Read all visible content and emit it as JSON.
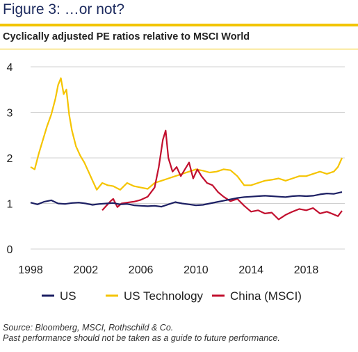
{
  "title": "Figure 3: …or not?",
  "subtitle": "Cyclically adjusted PE ratios relative to MSCI World",
  "source_lines": [
    "Source: Bloomberg, MSCI, Rothschild & Co.",
    "Past performance should not be taken as a guide to future performance."
  ],
  "colors": {
    "accent": "#f2c500",
    "US": "#1c1f63",
    "US Technology": "#f5c400",
    "China (MSCI)": "#c2102f",
    "grid": "#d0d0d0"
  },
  "chart_data": {
    "type": "line",
    "title": "",
    "xlabel": "",
    "ylabel": "",
    "xlim": [
      1998,
      2020.8
    ],
    "ylim": [
      0,
      4
    ],
    "x_ticks": [
      "1998",
      "2002",
      "2006",
      "2010",
      "2014",
      "2018"
    ],
    "y_ticks": [
      "0",
      "1",
      "2",
      "3",
      "4"
    ],
    "grid": "horizontal",
    "legend_position": "bottom",
    "series": [
      {
        "name": "US",
        "x": [
          1998,
          1998.5,
          1999,
          1999.5,
          2000,
          2000.5,
          2001,
          2001.5,
          2002,
          2002.5,
          2003,
          2003.5,
          2004,
          2004.5,
          2005,
          2005.5,
          2006,
          2006.5,
          2007,
          2007.5,
          2008,
          2008.5,
          2009,
          2009.5,
          2010,
          2010.5,
          2011,
          2011.5,
          2012,
          2012.5,
          2013,
          2013.5,
          2014,
          2014.5,
          2015,
          2015.5,
          2016,
          2016.5,
          2017,
          2017.5,
          2018,
          2018.5,
          2019,
          2019.5,
          2020,
          2020.6
        ],
        "y": [
          1.02,
          0.98,
          1.04,
          1.07,
          1.0,
          0.99,
          1.01,
          1.02,
          1.0,
          0.97,
          0.99,
          1.0,
          1.01,
          0.98,
          0.99,
          0.96,
          0.95,
          0.94,
          0.95,
          0.93,
          0.98,
          1.03,
          1.0,
          0.98,
          0.96,
          0.97,
          1.0,
          1.03,
          1.06,
          1.09,
          1.12,
          1.14,
          1.15,
          1.16,
          1.17,
          1.16,
          1.15,
          1.14,
          1.16,
          1.17,
          1.16,
          1.17,
          1.2,
          1.22,
          1.21,
          1.25
        ]
      },
      {
        "name": "US Technology",
        "x": [
          1998,
          1998.3,
          1998.6,
          1998.9,
          1999.2,
          1999.5,
          1999.8,
          2000.0,
          2000.2,
          2000.4,
          2000.6,
          2000.8,
          2001.0,
          2001.3,
          2001.6,
          2001.9,
          2002.2,
          2002.5,
          2002.8,
          2003.2,
          2003.6,
          2004,
          2004.5,
          2005,
          2005.5,
          2006,
          2006.5,
          2007,
          2007.5,
          2008,
          2008.5,
          2009,
          2009.5,
          2010,
          2010.5,
          2011,
          2011.5,
          2012,
          2012.5,
          2013,
          2013.5,
          2014,
          2014.5,
          2015,
          2015.5,
          2016,
          2016.5,
          2017,
          2017.5,
          2018,
          2018.5,
          2019,
          2019.5,
          2020,
          2020.3,
          2020.6
        ],
        "y": [
          1.8,
          1.75,
          2.1,
          2.4,
          2.7,
          2.95,
          3.3,
          3.6,
          3.75,
          3.4,
          3.5,
          2.95,
          2.6,
          2.25,
          2.05,
          1.9,
          1.7,
          1.5,
          1.3,
          1.45,
          1.4,
          1.38,
          1.3,
          1.45,
          1.38,
          1.35,
          1.32,
          1.45,
          1.5,
          1.55,
          1.6,
          1.65,
          1.7,
          1.75,
          1.72,
          1.68,
          1.7,
          1.75,
          1.73,
          1.6,
          1.4,
          1.4,
          1.45,
          1.5,
          1.52,
          1.55,
          1.5,
          1.55,
          1.6,
          1.6,
          1.65,
          1.7,
          1.65,
          1.7,
          1.8,
          2.0
        ]
      },
      {
        "name": "China (MSCI)",
        "x": [
          2003.2,
          2003.5,
          2003.8,
          2004.0,
          2004.3,
          2004.6,
          2005,
          2005.5,
          2006,
          2006.5,
          2007.0,
          2007.3,
          2007.6,
          2007.8,
          2008.0,
          2008.3,
          2008.6,
          2008.9,
          2009.2,
          2009.5,
          2009.8,
          2010.1,
          2010.4,
          2010.8,
          2011.2,
          2011.6,
          2012,
          2012.5,
          2013,
          2013.5,
          2014,
          2014.5,
          2015,
          2015.5,
          2016,
          2016.5,
          2017,
          2017.5,
          2018,
          2018.5,
          2019,
          2019.5,
          2020,
          2020.3,
          2020.6
        ],
        "y": [
          0.85,
          0.95,
          1.05,
          1.1,
          0.92,
          1.0,
          1.02,
          1.04,
          1.08,
          1.15,
          1.35,
          1.8,
          2.4,
          2.6,
          2.0,
          1.7,
          1.8,
          1.6,
          1.75,
          1.9,
          1.55,
          1.75,
          1.6,
          1.45,
          1.4,
          1.25,
          1.15,
          1.05,
          1.1,
          0.95,
          0.82,
          0.85,
          0.78,
          0.8,
          0.65,
          0.75,
          0.82,
          0.88,
          0.85,
          0.9,
          0.78,
          0.82,
          0.76,
          0.72,
          0.84
        ]
      }
    ]
  }
}
